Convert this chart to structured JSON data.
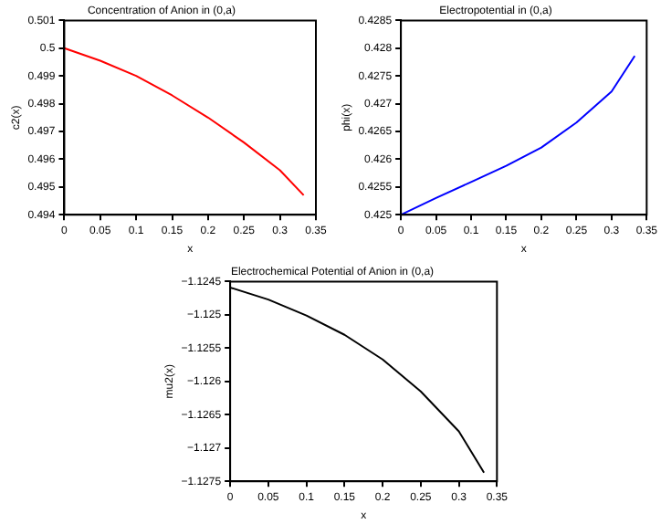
{
  "chart_data": [
    {
      "type": "line",
      "title": "Concentration of Anion in (0,a)",
      "xlabel": "x",
      "ylabel": "c2(x)",
      "x": [
        0,
        0.05,
        0.1,
        0.15,
        0.2,
        0.25,
        0.3,
        0.333
      ],
      "series": [
        {
          "color": "#ff0000",
          "values": [
            0.5,
            0.49955,
            0.499,
            0.4983,
            0.4975,
            0.4966,
            0.4956,
            0.4947
          ]
        }
      ],
      "xlim": [
        0,
        0.35
      ],
      "xticks": [
        0,
        0.05,
        0.1,
        0.15,
        0.2,
        0.25,
        0.3,
        0.35
      ],
      "ylim": [
        0.494,
        0.501
      ],
      "yticks": [
        0.494,
        0.495,
        0.496,
        0.497,
        0.498,
        0.499,
        0.5,
        0.501
      ],
      "grid": false,
      "legend": false,
      "marker": "none"
    },
    {
      "type": "line",
      "title": "Electropotential in (0,a)",
      "xlabel": "x",
      "ylabel": "phi(x)",
      "x": [
        0,
        0.05,
        0.1,
        0.15,
        0.2,
        0.25,
        0.3,
        0.333
      ],
      "series": [
        {
          "color": "#0000ff",
          "values": [
            0.425,
            0.4253,
            0.42559,
            0.42588,
            0.42621,
            0.42666,
            0.42722,
            0.42786
          ]
        }
      ],
      "xlim": [
        0,
        0.35
      ],
      "xticks": [
        0,
        0.05,
        0.1,
        0.15,
        0.2,
        0.25,
        0.3,
        0.35
      ],
      "ylim": [
        0.425,
        0.4285
      ],
      "yticks": [
        0.425,
        0.4255,
        0.426,
        0.4265,
        0.427,
        0.4275,
        0.428,
        0.4285
      ],
      "grid": false,
      "legend": false,
      "marker": "none"
    },
    {
      "type": "line",
      "title": "Electrochemical Potential of Anion in (0,a)",
      "xlabel": "x",
      "ylabel": "mu2(x)",
      "x": [
        0,
        0.05,
        0.1,
        0.15,
        0.2,
        0.25,
        0.3,
        0.333
      ],
      "series": [
        {
          "color": "#000000",
          "values": [
            -1.12459,
            -1.12477,
            -1.12501,
            -1.1253,
            -1.12567,
            -1.12615,
            -1.12675,
            -1.12737
          ]
        }
      ],
      "xlim": [
        0,
        0.35
      ],
      "xticks": [
        0,
        0.05,
        0.1,
        0.15,
        0.2,
        0.25,
        0.3,
        0.35
      ],
      "ylim": [
        -1.1275,
        -1.1245
      ],
      "yticks": [
        -1.1275,
        -1.127,
        -1.1265,
        -1.126,
        -1.1255,
        -1.125,
        -1.1245
      ],
      "grid": false,
      "legend": false,
      "marker": "none"
    }
  ]
}
